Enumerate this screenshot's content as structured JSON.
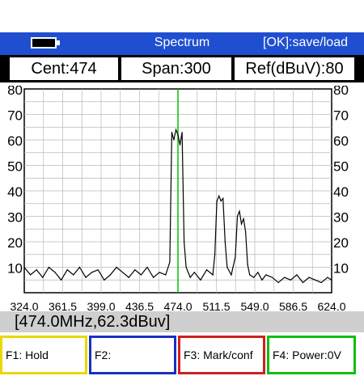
{
  "topbar": {
    "title": "Spectrum",
    "hint": "[OK]:save/load"
  },
  "params": {
    "center": "Cent:474",
    "span": "Span:300",
    "ref": "Ref(dBuV):80"
  },
  "chart_data": {
    "type": "line",
    "ylim": [
      0,
      80
    ],
    "xlim": [
      324,
      624
    ],
    "y_ticks": [
      "80",
      "70",
      "60",
      "50",
      "40",
      "30",
      "20",
      "10"
    ],
    "x_ticks": [
      "324.0",
      "361.5",
      "399.0",
      "436.5",
      "474.0",
      "511.5",
      "549.0",
      "586.5",
      "624.0"
    ],
    "marker_x": 474.0,
    "x": [
      324,
      330,
      336,
      342,
      348,
      354,
      360,
      366,
      372,
      378,
      384,
      390,
      396,
      402,
      408,
      414,
      420,
      426,
      432,
      438,
      444,
      450,
      456,
      462,
      466,
      468,
      470,
      472,
      474,
      476,
      478,
      480,
      482,
      486,
      490,
      496,
      502,
      508,
      510,
      512,
      514,
      516,
      518,
      520,
      522,
      526,
      530,
      532,
      534,
      536,
      538,
      540,
      542,
      544,
      548,
      552,
      556,
      560,
      566,
      572,
      578,
      584,
      590,
      596,
      602,
      608,
      614,
      620,
      624
    ],
    "y": [
      10,
      7,
      9,
      6,
      10,
      8,
      5,
      9,
      7,
      10,
      6,
      8,
      9,
      5,
      7,
      10,
      8,
      6,
      9,
      7,
      10,
      6,
      8,
      7,
      12,
      63,
      60,
      64,
      62,
      58,
      63,
      20,
      10,
      6,
      8,
      5,
      9,
      7,
      15,
      36,
      38,
      36,
      37,
      20,
      10,
      7,
      14,
      30,
      32,
      27,
      29,
      24,
      11,
      7,
      6,
      8,
      5,
      7,
      6,
      4,
      6,
      5,
      7,
      4,
      6,
      5,
      4,
      6,
      5
    ],
    "grid": true,
    "line_color": "#000000",
    "marker_color": "#00c000"
  },
  "status": {
    "readout": "[474.0MHz,62.3dBuv]"
  },
  "fkeys": [
    {
      "label": "F1:    Hold",
      "color": "#e8d800"
    },
    {
      "label": "F2:",
      "color": "#1a2fbf"
    },
    {
      "label": "F3:  Mark/conf",
      "color": "#d02020"
    },
    {
      "label": "F4:  Power:0V",
      "color": "#10c010"
    }
  ]
}
